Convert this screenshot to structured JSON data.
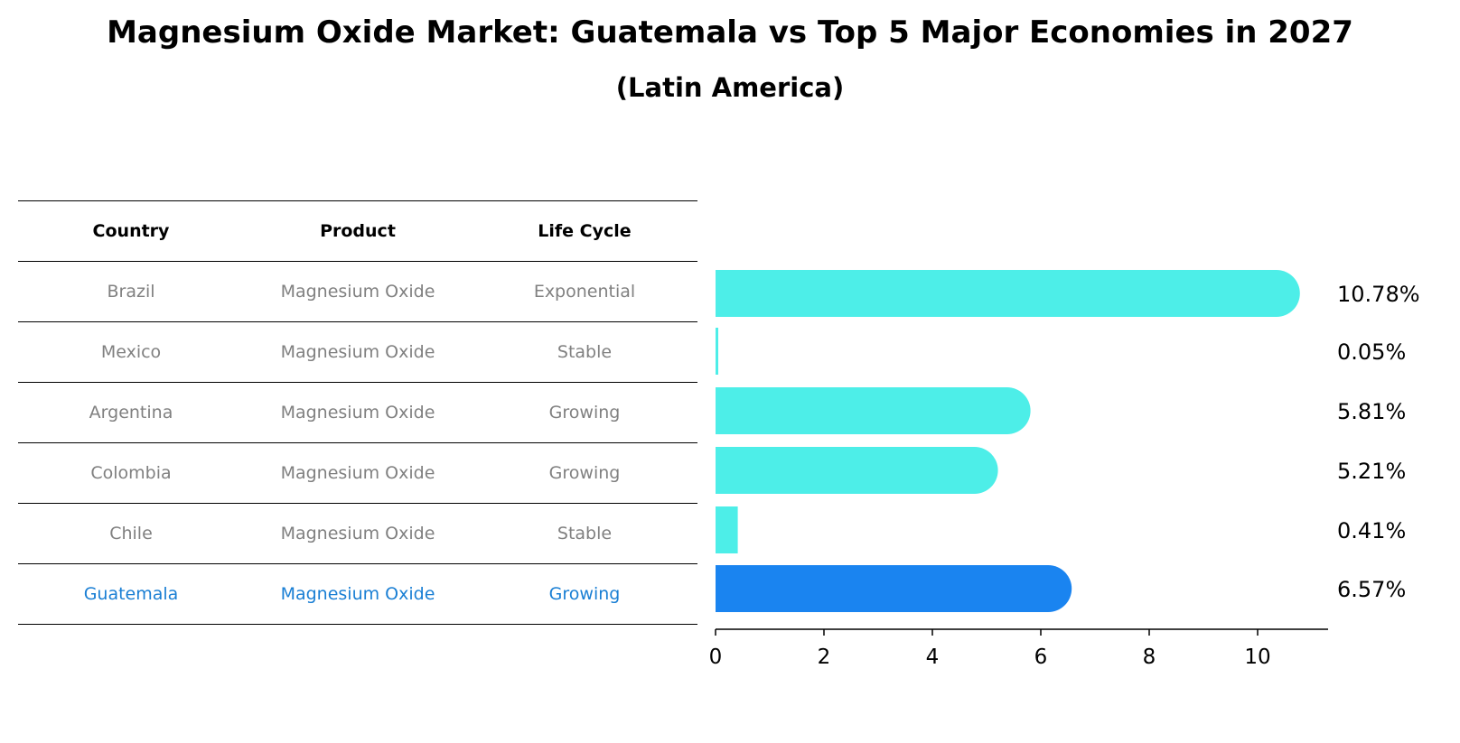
{
  "title": "Magnesium Oxide Market: Guatemala vs Top 5 Major Economies in 2027",
  "subtitle": "(Latin America)",
  "table": {
    "headers": [
      "Country",
      "Product",
      "Life Cycle"
    ],
    "rows": [
      {
        "country": "Brazil",
        "product": "Magnesium Oxide",
        "life_cycle": "Exponential"
      },
      {
        "country": "Mexico",
        "product": "Magnesium Oxide",
        "life_cycle": "Stable"
      },
      {
        "country": "Argentina",
        "product": "Magnesium Oxide",
        "life_cycle": "Growing"
      },
      {
        "country": "Colombia",
        "product": "Magnesium Oxide",
        "life_cycle": "Growing"
      },
      {
        "country": "Chile",
        "product": "Magnesium Oxide",
        "life_cycle": "Stable"
      },
      {
        "country": "Guatemala",
        "product": "Magnesium Oxide",
        "life_cycle": "Growing"
      }
    ]
  },
  "chart_data": {
    "type": "bar",
    "orientation": "horizontal",
    "categories": [
      "Brazil",
      "Mexico",
      "Argentina",
      "Colombia",
      "Chile",
      "Guatemala"
    ],
    "values": [
      10.78,
      0.05,
      5.81,
      5.21,
      0.41,
      6.57
    ],
    "value_labels": [
      "10.78%",
      "0.05%",
      "5.81%",
      "5.21%",
      "0.41%",
      "6.57%"
    ],
    "highlight_category": "Guatemala",
    "xlim": [
      0,
      11.3
    ],
    "xticks": [
      0,
      2,
      4,
      6,
      8,
      10
    ],
    "colors": {
      "default": "#4deee8",
      "highlight": "#1a84f0"
    }
  }
}
